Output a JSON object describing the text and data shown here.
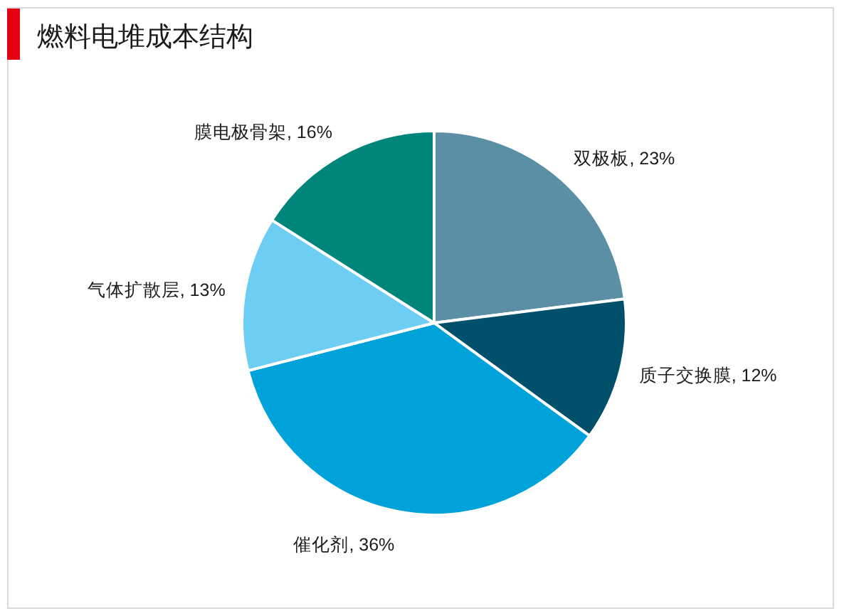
{
  "chart_data": {
    "type": "pie",
    "title": "燃料电堆成本结构",
    "categories": [
      "双极板",
      "质子交换膜",
      "催化剂",
      "气体扩散层",
      "膜电极骨架"
    ],
    "values": [
      23,
      12,
      36,
      13,
      16
    ],
    "value_labels": [
      "23%",
      "12%",
      "36%",
      "13%",
      "16%"
    ],
    "colors": [
      "#5b8fa6",
      "#004f6b",
      "#00a3d9",
      "#6dcdf3",
      "#00857a"
    ]
  }
}
